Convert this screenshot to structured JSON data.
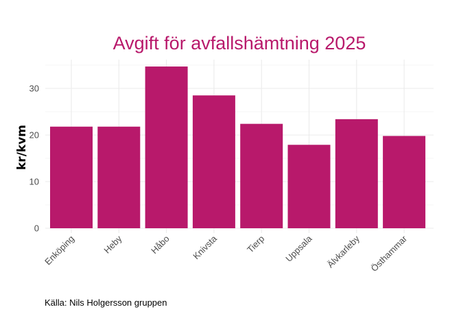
{
  "colors": {
    "bar": "#B8196B",
    "title": "#B8196B",
    "grid": "#EBEBEB",
    "text": "#4D4D4D"
  },
  "caption": "Källa: Nils Holgersson gruppen",
  "chart_data": {
    "type": "bar",
    "title": "Avgift för avfallshämtning 2025",
    "xlabel": "",
    "ylabel": "kr/kvm",
    "categories": [
      "Enköping",
      "Heby",
      "Håbo",
      "Knivsta",
      "Tierp",
      "Uppsala",
      "Älvkarleby",
      "Östhammar"
    ],
    "values": [
      21.8,
      21.8,
      34.7,
      28.5,
      22.4,
      17.9,
      23.4,
      19.8
    ],
    "ylim": [
      0,
      36
    ],
    "yticks": [
      0,
      10,
      20,
      30
    ],
    "grid": true,
    "legend": "none"
  }
}
